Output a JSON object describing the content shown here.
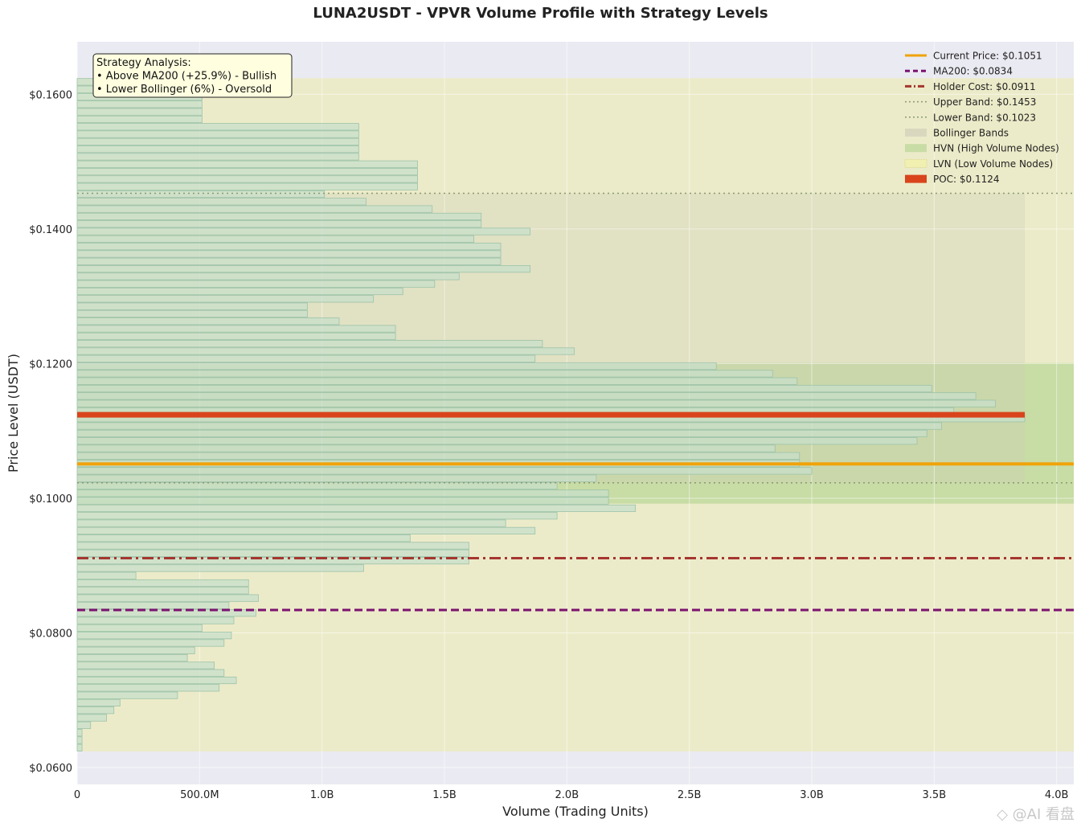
{
  "chart_data": {
    "type": "bar",
    "orientation": "horizontal",
    "title": "LUNA2USDT - VPVR Volume Profile with Strategy Levels",
    "xlabel": "Volume (Trading Units)",
    "ylabel": "Price Level (USDT)",
    "xlim": [
      0,
      4070000000
    ],
    "ylim": [
      0.0575,
      0.1678
    ],
    "x_ticks": [
      {
        "value": 0,
        "label": "0"
      },
      {
        "value": 500000000,
        "label": "500.0M"
      },
      {
        "value": 1000000000,
        "label": "1.0B"
      },
      {
        "value": 1500000000,
        "label": "1.5B"
      },
      {
        "value": 2000000000,
        "label": "2.0B"
      },
      {
        "value": 2500000000,
        "label": "2.5B"
      },
      {
        "value": 3000000000,
        "label": "3.0B"
      },
      {
        "value": 3500000000,
        "label": "3.5B"
      },
      {
        "value": 4000000000,
        "label": "4.0B"
      }
    ],
    "y_ticks": [
      {
        "value": 0.06,
        "label": "$0.0600"
      },
      {
        "value": 0.08,
        "label": "$0.0800"
      },
      {
        "value": 0.1,
        "label": "$0.1000"
      },
      {
        "value": 0.12,
        "label": "$0.1200"
      },
      {
        "value": 0.14,
        "label": "$0.1400"
      },
      {
        "value": 0.16,
        "label": "$0.1600"
      }
    ],
    "grid": true,
    "legend_position": "top-right",
    "bin_low": 0.0624,
    "bin_high": 0.1624,
    "bin_volumes": [
      20000000,
      20000000,
      20000000,
      55000000,
      120000000,
      150000000,
      175000000,
      410000000,
      580000000,
      650000000,
      600000000,
      560000000,
      450000000,
      480000000,
      600000000,
      630000000,
      510000000,
      640000000,
      730000000,
      620000000,
      740000000,
      700000000,
      700000000,
      240000000,
      1170000000,
      1600000000,
      1600000000,
      1600000000,
      1360000000,
      1870000000,
      1750000000,
      1960000000,
      2280000000,
      2170000000,
      2170000000,
      1960000000,
      2120000000,
      3000000000,
      2950000000,
      2950000000,
      2850000000,
      3430000000,
      3470000000,
      3530000000,
      3870000000,
      3580000000,
      3750000000,
      3670000000,
      3490000000,
      2940000000,
      2840000000,
      2610000000,
      1870000000,
      2030000000,
      1900000000,
      1300000000,
      1300000000,
      1070000000,
      940000000,
      940000000,
      1210000000,
      1330000000,
      1460000000,
      1560000000,
      1850000000,
      1730000000,
      1730000000,
      1730000000,
      1620000000,
      1850000000,
      1650000000,
      1650000000,
      1450000000,
      1180000000,
      1010000000,
      1390000000,
      1390000000,
      1390000000,
      1390000000,
      1150000000,
      1150000000,
      1150000000,
      1150000000,
      1150000000,
      510000000,
      510000000,
      510000000,
      510000000,
      510000000,
      510000000
    ],
    "levels": [
      {
        "name": "Current Price",
        "value": 0.1051,
        "label": "Current Price: $0.1051",
        "color": "#f0a30a",
        "style": "solid"
      },
      {
        "name": "MA200",
        "value": 0.0834,
        "label": "MA200: $0.0834",
        "color": "#7b1370",
        "style": "dashed"
      },
      {
        "name": "Holder Cost",
        "value": 0.0911,
        "label": "Holder Cost: $0.0911",
        "color": "#a5362f",
        "style": "dashdot"
      },
      {
        "name": "Upper Band",
        "value": 0.1453,
        "label": "Upper Band: $0.1453",
        "color": "#8a9a70",
        "style": "dotted"
      },
      {
        "name": "Lower Band",
        "value": 0.1023,
        "label": "Lower Band: $0.1023",
        "color": "#8a9a70",
        "style": "dotted"
      }
    ],
    "poc": {
      "value": 0.1124,
      "label": "POC: $0.1124",
      "color": "#d9441c",
      "volume": 3870000000
    },
    "bollinger_band": {
      "low": 0.1023,
      "high": 0.1453,
      "label": "Bollinger Bands"
    },
    "hvn_zone": {
      "low": 0.0992,
      "high": 0.1201,
      "label": "HVN (High Volume Nodes)"
    },
    "lvn_zone": {
      "low": 0.0624,
      "high": 0.1624,
      "label": "LVN (Low Volume Nodes)"
    },
    "annotation": {
      "lines": [
        "Strategy Analysis:",
        "• Above MA200 (+25.9%) - Bullish",
        "• Lower Bollinger (6%) - Oversold"
      ]
    }
  },
  "colors": {
    "plot_background": "#eaeaf2",
    "lvn_fill": "#ecebc9",
    "hvn_fill": "#c8dca5",
    "band_fill": "#e0dfc3",
    "bar_fill": "#c8dfcb",
    "bar_edge": "#9cc3a8"
  },
  "watermark": "◇ @AI 看盘"
}
